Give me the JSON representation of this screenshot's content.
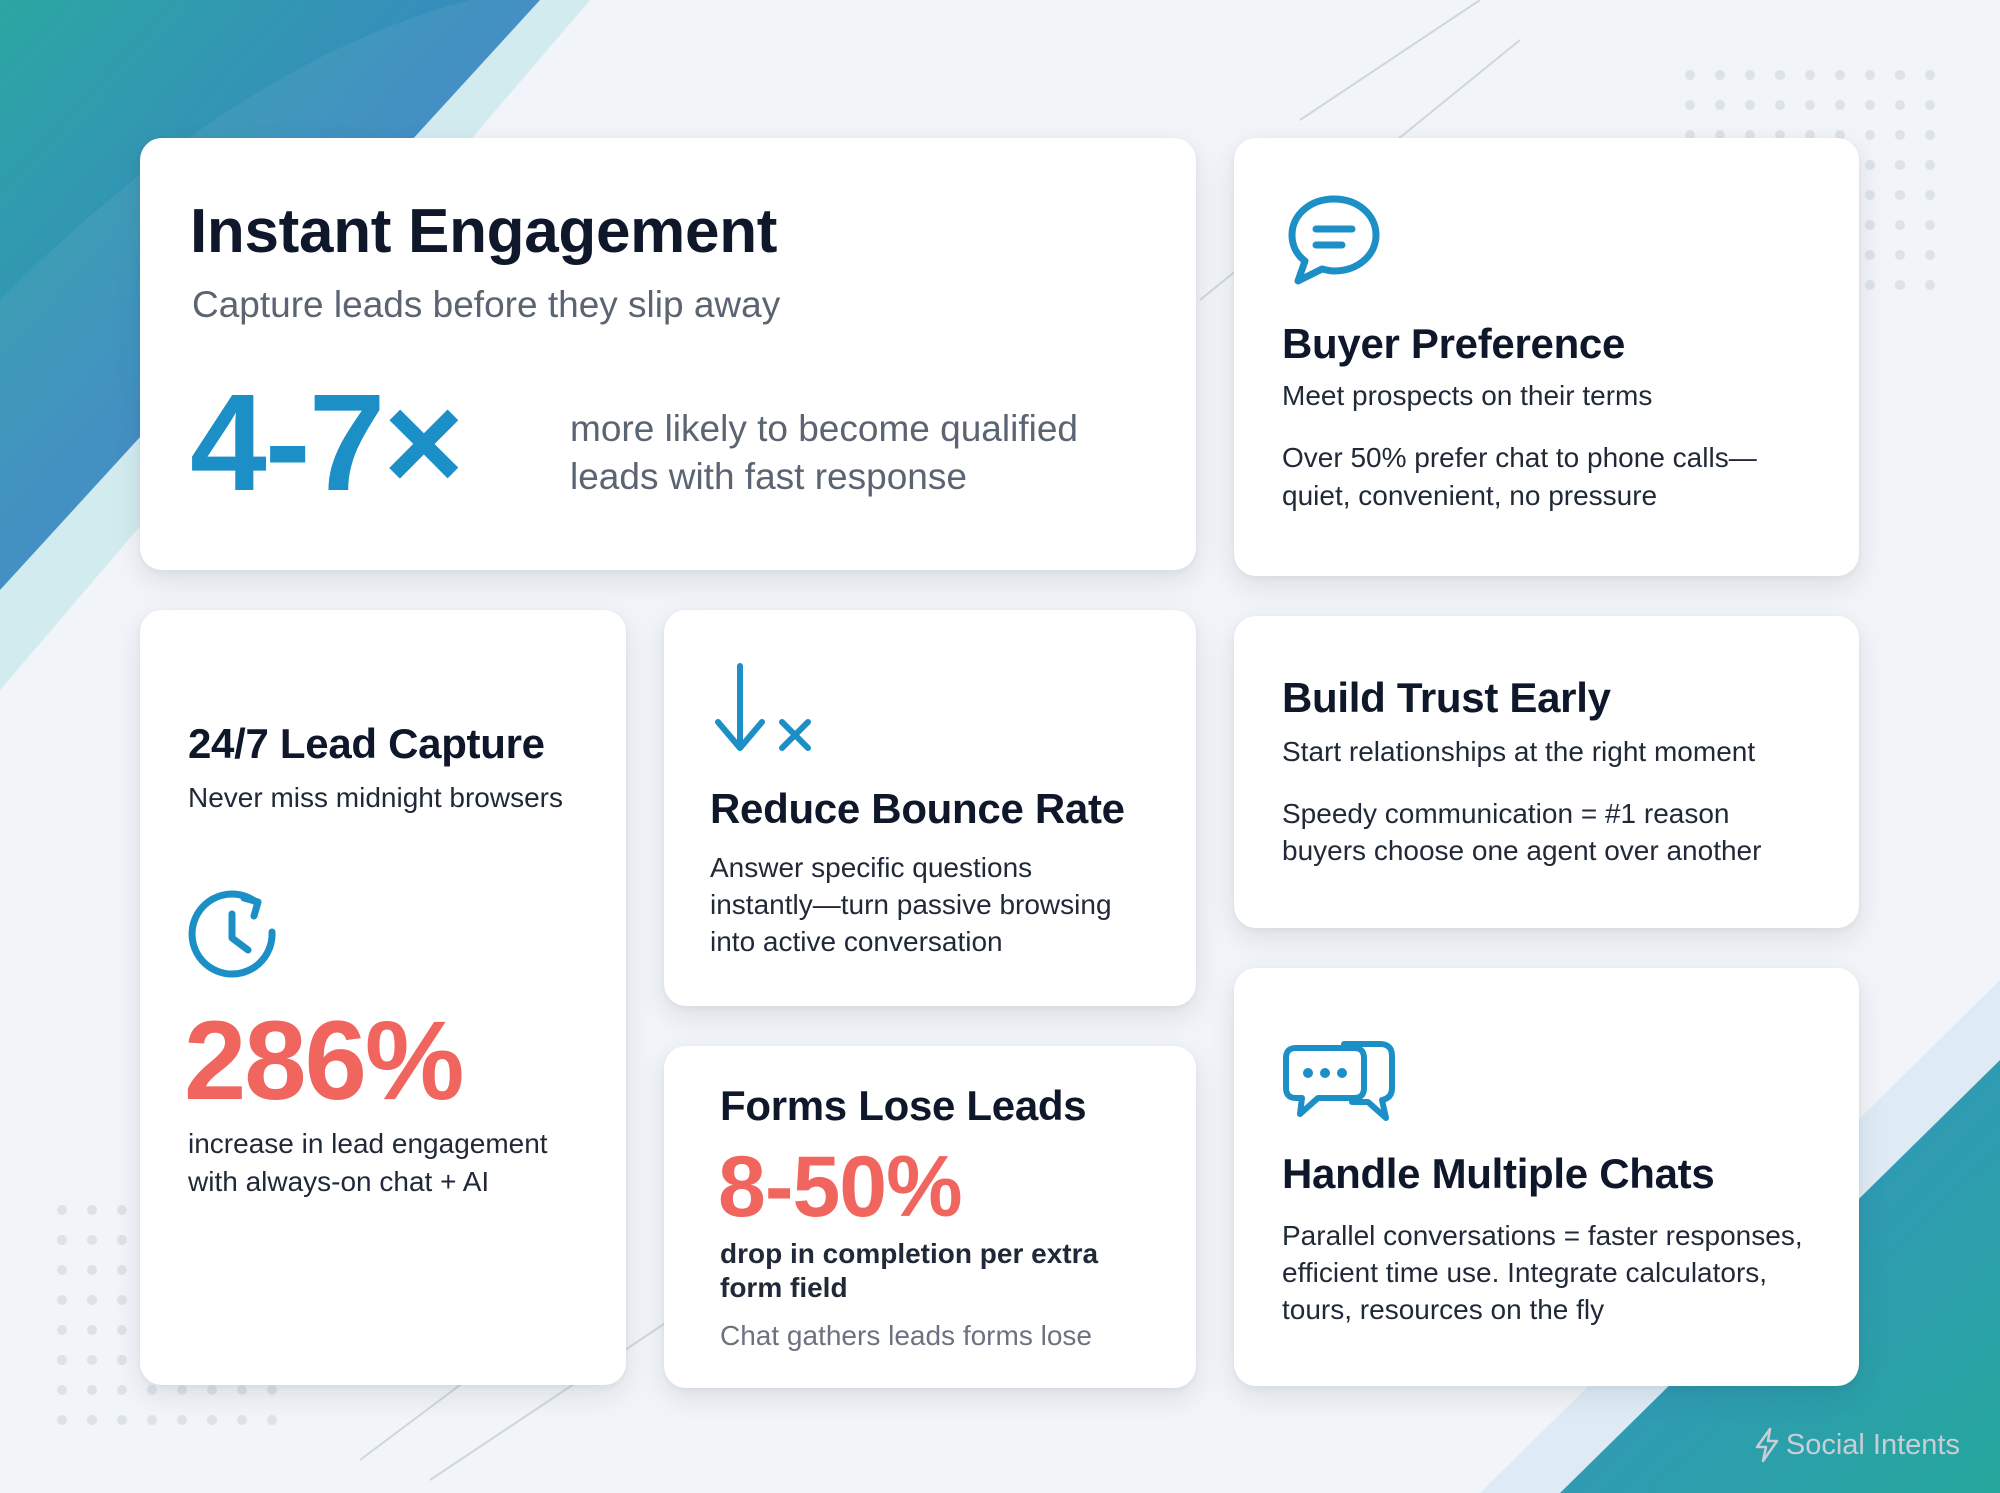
{
  "colors": {
    "accent_teal": "#1b8fc6",
    "accent_coral": "#f0655e",
    "title_navy": "#0f172a",
    "card_bg": "#ffffff",
    "page_bg": "#f1f4f8"
  },
  "instant_engagement": {
    "title": "Instant Engagement",
    "subtitle": "Capture leads before they slip away",
    "stat": "4-7×",
    "stat_text_line1": "more likely to become qualified",
    "stat_text_line2": "leads with fast response"
  },
  "buyer_preference": {
    "icon": "chat-bubble-icon",
    "title": "Buyer Preference",
    "subtitle": "Meet prospects on their terms",
    "body_line1": "Over 50% prefer chat to phone calls—",
    "body_line2": "quiet, convenient, no pressure"
  },
  "lead_capture": {
    "title": "24/7 Lead Capture",
    "subtitle": "Never miss midnight browsers",
    "icon": "clock-refresh-icon",
    "stat": "286%",
    "stat_text_line1": "increase in lead engagement",
    "stat_text_line2": "with always-on chat + AI"
  },
  "bounce_rate": {
    "icon": "arrow-down-x-icon",
    "title": "Reduce Bounce Rate",
    "body_line1": "Answer specific questions",
    "body_line2": "instantly—turn passive browsing",
    "body_line3": "into active conversation"
  },
  "forms": {
    "title": "Forms Lose Leads",
    "stat": "8-50%",
    "stat_text_line1": "drop in completion per extra",
    "stat_text_line2": "form field",
    "footnote": "Chat gathers leads forms lose"
  },
  "trust": {
    "title": "Build Trust Early",
    "subtitle": "Start relationships at the right moment",
    "body_line1": "Speedy communication = #1 reason",
    "body_line2": "buyers choose one agent over another"
  },
  "multiple_chats": {
    "icon": "multiple-chats-icon",
    "title": "Handle Multiple Chats",
    "body_line1": "Parallel conversations = faster responses,",
    "body_line2": "efficient time use. Integrate calculators,",
    "body_line3": "tours, resources on the fly"
  },
  "brand": {
    "icon": "lightning-bolt-icon",
    "name": "Social Intents"
  }
}
